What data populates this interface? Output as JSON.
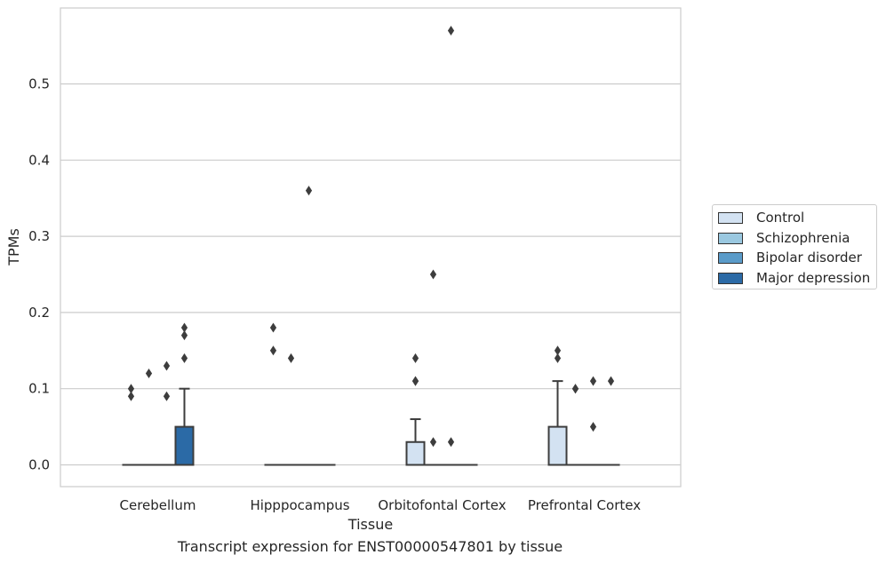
{
  "chart_data": {
    "type": "box",
    "xlabel": "Tissue",
    "ylabel": "TPMs",
    "caption": "Transcript expression for ENST00000547801 by tissue",
    "ylim": [
      -0.028,
      0.6
    ],
    "yticks": [
      0.0,
      0.1,
      0.2,
      0.3,
      0.4,
      0.5
    ],
    "ytick_labels": [
      "0.0",
      "0.1",
      "0.2",
      "0.3",
      "0.4",
      "0.5"
    ],
    "grid": true,
    "legend_position": "right",
    "categories": [
      "Cerebellum",
      "Hipppocampus",
      "Orbitofontal Cortex",
      "Prefrontal Cortex"
    ],
    "series": [
      {
        "name": "Control",
        "color": "#d3e2f2",
        "boxes": [
          {
            "q1": 0,
            "median": 0,
            "q3": 0,
            "whisker_low": 0,
            "whisker_high": 0,
            "outliers": [
              0.09,
              0.1
            ]
          },
          {
            "q1": 0,
            "median": 0,
            "q3": 0,
            "whisker_low": 0,
            "whisker_high": 0,
            "outliers": [
              0.15,
              0.18
            ]
          },
          {
            "q1": 0,
            "median": 0,
            "q3": 0.03,
            "whisker_low": 0,
            "whisker_high": 0.06,
            "outliers": [
              0.11,
              0.11,
              0.14
            ]
          },
          {
            "q1": 0,
            "median": 0,
            "q3": 0.05,
            "whisker_low": 0,
            "whisker_high": 0.11,
            "outliers": [
              0.14,
              0.15
            ]
          }
        ]
      },
      {
        "name": "Schizophrenia",
        "color": "#9ac8e0",
        "boxes": [
          {
            "q1": 0,
            "median": 0,
            "q3": 0,
            "whisker_low": 0,
            "whisker_high": 0,
            "outliers": [
              0.12
            ]
          },
          {
            "q1": 0,
            "median": 0,
            "q3": 0,
            "whisker_low": 0,
            "whisker_high": 0,
            "outliers": [
              0.14
            ]
          },
          {
            "q1": 0,
            "median": 0,
            "q3": 0,
            "whisker_low": 0,
            "whisker_high": 0,
            "outliers": [
              0.03,
              0.25
            ]
          },
          {
            "q1": 0,
            "median": 0,
            "q3": 0,
            "whisker_low": 0,
            "whisker_high": 0,
            "outliers": [
              0.1,
              0.1
            ]
          }
        ]
      },
      {
        "name": "Bipolar disorder",
        "color": "#5a9bc9",
        "boxes": [
          {
            "q1": 0,
            "median": 0,
            "q3": 0,
            "whisker_low": 0,
            "whisker_high": 0,
            "outliers": [
              0.09,
              0.13
            ]
          },
          {
            "q1": 0,
            "median": 0,
            "q3": 0,
            "whisker_low": 0,
            "whisker_high": 0,
            "outliers": [
              0.36
            ]
          },
          {
            "q1": 0,
            "median": 0,
            "q3": 0,
            "whisker_low": 0,
            "whisker_high": 0,
            "outliers": [
              0.03,
              0.57
            ]
          },
          {
            "q1": 0,
            "median": 0,
            "q3": 0,
            "whisker_low": 0,
            "whisker_high": 0,
            "outliers": [
              0.05,
              0.11
            ]
          }
        ]
      },
      {
        "name": "Major depression",
        "color": "#2b6aa6",
        "boxes": [
          {
            "q1": 0,
            "median": 0,
            "q3": 0.05,
            "whisker_low": 0,
            "whisker_high": 0.1,
            "outliers": [
              0.14,
              0.17,
              0.18
            ]
          },
          {
            "q1": 0,
            "median": 0,
            "q3": 0,
            "whisker_low": 0,
            "whisker_high": 0,
            "outliers": []
          },
          {
            "q1": 0,
            "median": 0,
            "q3": 0,
            "whisker_low": 0,
            "whisker_high": 0,
            "outliers": []
          },
          {
            "q1": 0,
            "median": 0,
            "q3": 0,
            "whisker_low": 0,
            "whisker_high": 0,
            "outliers": [
              0.11
            ]
          }
        ]
      }
    ]
  }
}
